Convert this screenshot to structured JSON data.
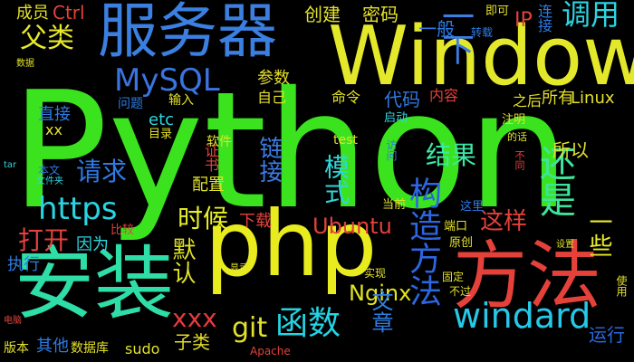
{
  "words": [
    {
      "text": "Python",
      "color": "#3be31f"
    },
    {
      "text": "Window",
      "color": "#e3e92a"
    },
    {
      "text": "php",
      "color": "#e8ec1f"
    },
    {
      "text": "安装",
      "color": "#2fdda7"
    },
    {
      "text": "方法",
      "color": "#e5413b"
    },
    {
      "text": "服务器",
      "color": "#3b7fe0"
    },
    {
      "text": "windard",
      "color": "#26c8e8"
    },
    {
      "text": "构造方法",
      "color": "#2c66e0"
    },
    {
      "text": "还是",
      "color": "#3de59a"
    },
    {
      "text": "MySQL",
      "color": "#3a74e0"
    },
    {
      "text": "函数",
      "color": "#24d4e4"
    },
    {
      "text": "https",
      "color": "#2ad4e2"
    },
    {
      "text": "一下",
      "color": "#3c7ee4"
    },
    {
      "text": "调用",
      "color": "#2ad5e3"
    },
    {
      "text": "父类",
      "color": "#e9ea26"
    },
    {
      "text": "打开",
      "color": "#e3413d"
    },
    {
      "text": "请求",
      "color": "#2e7be5"
    },
    {
      "text": "时候",
      "color": "#e9ee26"
    },
    {
      "text": "默认",
      "color": "#dfe124"
    },
    {
      "text": "模式",
      "color": "#2fd6d9"
    },
    {
      "text": "结果",
      "color": "#3de8a5"
    },
    {
      "text": "链接",
      "color": "#3b7ce4"
    },
    {
      "text": "这样",
      "color": "#e3413b"
    },
    {
      "text": "一些",
      "color": "#e9eb26"
    },
    {
      "text": "Ubuntu",
      "color": "#e3413b"
    },
    {
      "text": "Nginx",
      "color": "#e1e41e"
    },
    {
      "text": "git",
      "color": "#e2e12b"
    },
    {
      "text": "xxx",
      "color": "#e33a3d"
    },
    {
      "text": "文章",
      "color": "#2f7de2"
    },
    {
      "text": "运行",
      "color": "#2a6ae1"
    },
    {
      "text": "子类",
      "color": "#e3dd2b"
    },
    {
      "text": "sudo",
      "color": "#e0e12d"
    },
    {
      "text": "因为",
      "color": "#2fd6e1"
    },
    {
      "text": "执行",
      "color": "#2f7de2"
    },
    {
      "text": "配置",
      "color": "#e1e12a"
    },
    {
      "text": "所以",
      "color": "#e5e12b"
    },
    {
      "text": "代码",
      "color": "#2e7be3"
    },
    {
      "text": "所有",
      "color": "#e3dd2b"
    },
    {
      "text": "之后",
      "color": "#e1e12a"
    },
    {
      "text": "参数",
      "color": "#e3dd2b"
    },
    {
      "text": "创建",
      "color": "#e4e22b"
    },
    {
      "text": "密码",
      "color": "#e5e22b"
    },
    {
      "text": "一般",
      "color": "#2e7be3"
    },
    {
      "text": "IP",
      "color": "#e3413b"
    },
    {
      "text": "成员",
      "color": "#e4e22b"
    },
    {
      "text": "Ctrl",
      "color": "#e4413b"
    },
    {
      "text": "直接",
      "color": "#2e7be3"
    },
    {
      "text": "etc",
      "color": "#2fd6e1"
    },
    {
      "text": "命令",
      "color": "#e4e22b"
    },
    {
      "text": "自己",
      "color": "#e3dd2b"
    },
    {
      "text": "内容",
      "color": "#e3413b"
    },
    {
      "text": "Linux",
      "color": "#e4e22b"
    },
    {
      "text": "下载",
      "color": "#e3413b"
    },
    {
      "text": "证书",
      "color": "#e3413b"
    },
    {
      "text": "软件",
      "color": "#e4e22b"
    },
    {
      "text": "test",
      "color": "#e4e22b"
    },
    {
      "text": "问题",
      "color": "#2e7be3"
    },
    {
      "text": "输入",
      "color": "#e4e22b"
    },
    {
      "text": "xx",
      "color": "#e4e22b"
    },
    {
      "text": "目录",
      "color": "#e4e22b"
    },
    {
      "text": "启动",
      "color": "#2fd6e1"
    },
    {
      "text": "注明",
      "color": "#e4e22b"
    },
    {
      "text": "的话",
      "color": "#e4e22b"
    },
    {
      "text": "连接",
      "color": "#2e7be3"
    },
    {
      "text": "即可",
      "color": "#e4e22b"
    },
    {
      "text": "转载",
      "color": "#2e7be3"
    },
    {
      "text": "数据",
      "color": "#e4e22b"
    },
    {
      "text": "本文",
      "color": "#2e7be3"
    },
    {
      "text": "文件夹",
      "color": "#2fd6e1"
    },
    {
      "text": "tar",
      "color": "#2fd6e1"
    },
    {
      "text": "访问",
      "color": "#2e7be3"
    },
    {
      "text": "当前",
      "color": "#e4e22b"
    },
    {
      "text": "这里",
      "color": "#2e7be3"
    },
    {
      "text": "端口",
      "color": "#e4e22b"
    },
    {
      "text": "原创",
      "color": "#e4e22b"
    },
    {
      "text": "不同",
      "color": "#e3413b"
    },
    {
      "text": "设置",
      "color": "#e4e22b"
    },
    {
      "text": "比较",
      "color": "#e3413b"
    },
    {
      "text": "显示",
      "color": "#e4e22b"
    },
    {
      "text": "实现",
      "color": "#e4e22b"
    },
    {
      "text": "固定",
      "color": "#e4e22b"
    },
    {
      "text": "不过",
      "color": "#e4e22b"
    },
    {
      "text": "使用",
      "color": "#e4e22b"
    },
    {
      "text": "电脑",
      "color": "#e3413b"
    },
    {
      "text": "版本",
      "color": "#e4e22b"
    },
    {
      "text": "其他",
      "color": "#2e7be3"
    },
    {
      "text": "数据库",
      "color": "#e4e22b"
    },
    {
      "text": "Apache",
      "color": "#e3413b"
    }
  ]
}
